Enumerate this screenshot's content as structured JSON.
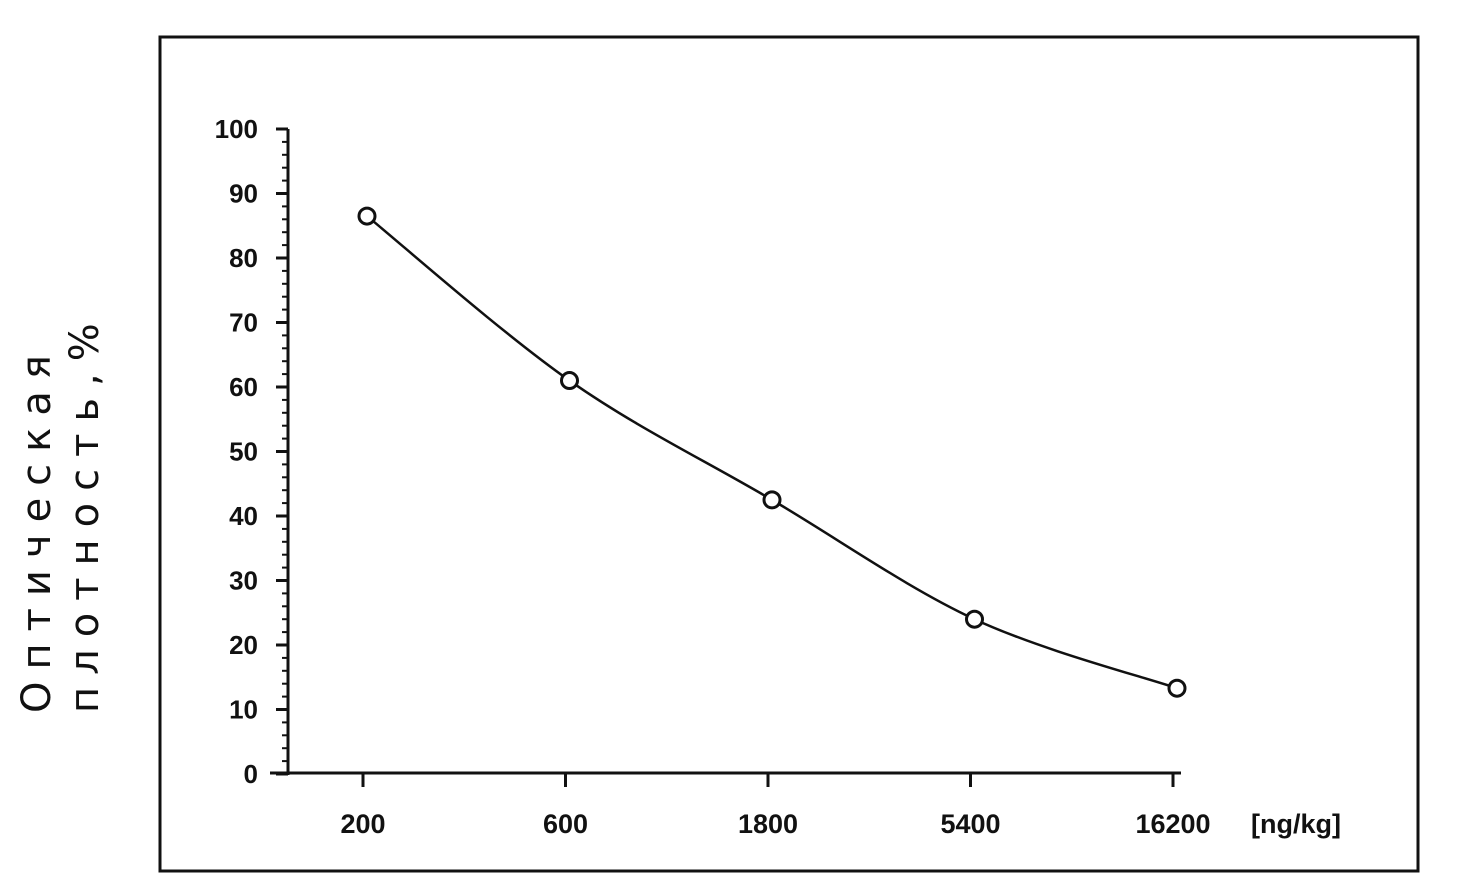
{
  "chart_data": {
    "type": "line",
    "categories": [
      "200",
      "600",
      "1800",
      "5400",
      "16200"
    ],
    "x_unit": "[ng/kg]",
    "y_ticks": [
      0,
      10,
      20,
      30,
      40,
      50,
      60,
      70,
      80,
      90,
      100
    ],
    "ylim": [
      0,
      100
    ],
    "ylabel_lines": [
      "Оптическая",
      "плотность,%"
    ],
    "series": [
      {
        "values": [
          86.5,
          61,
          42.5,
          24,
          13.3
        ]
      }
    ],
    "grid": false,
    "legend": "none",
    "marker": "open-circle",
    "line_color": "#111111"
  }
}
